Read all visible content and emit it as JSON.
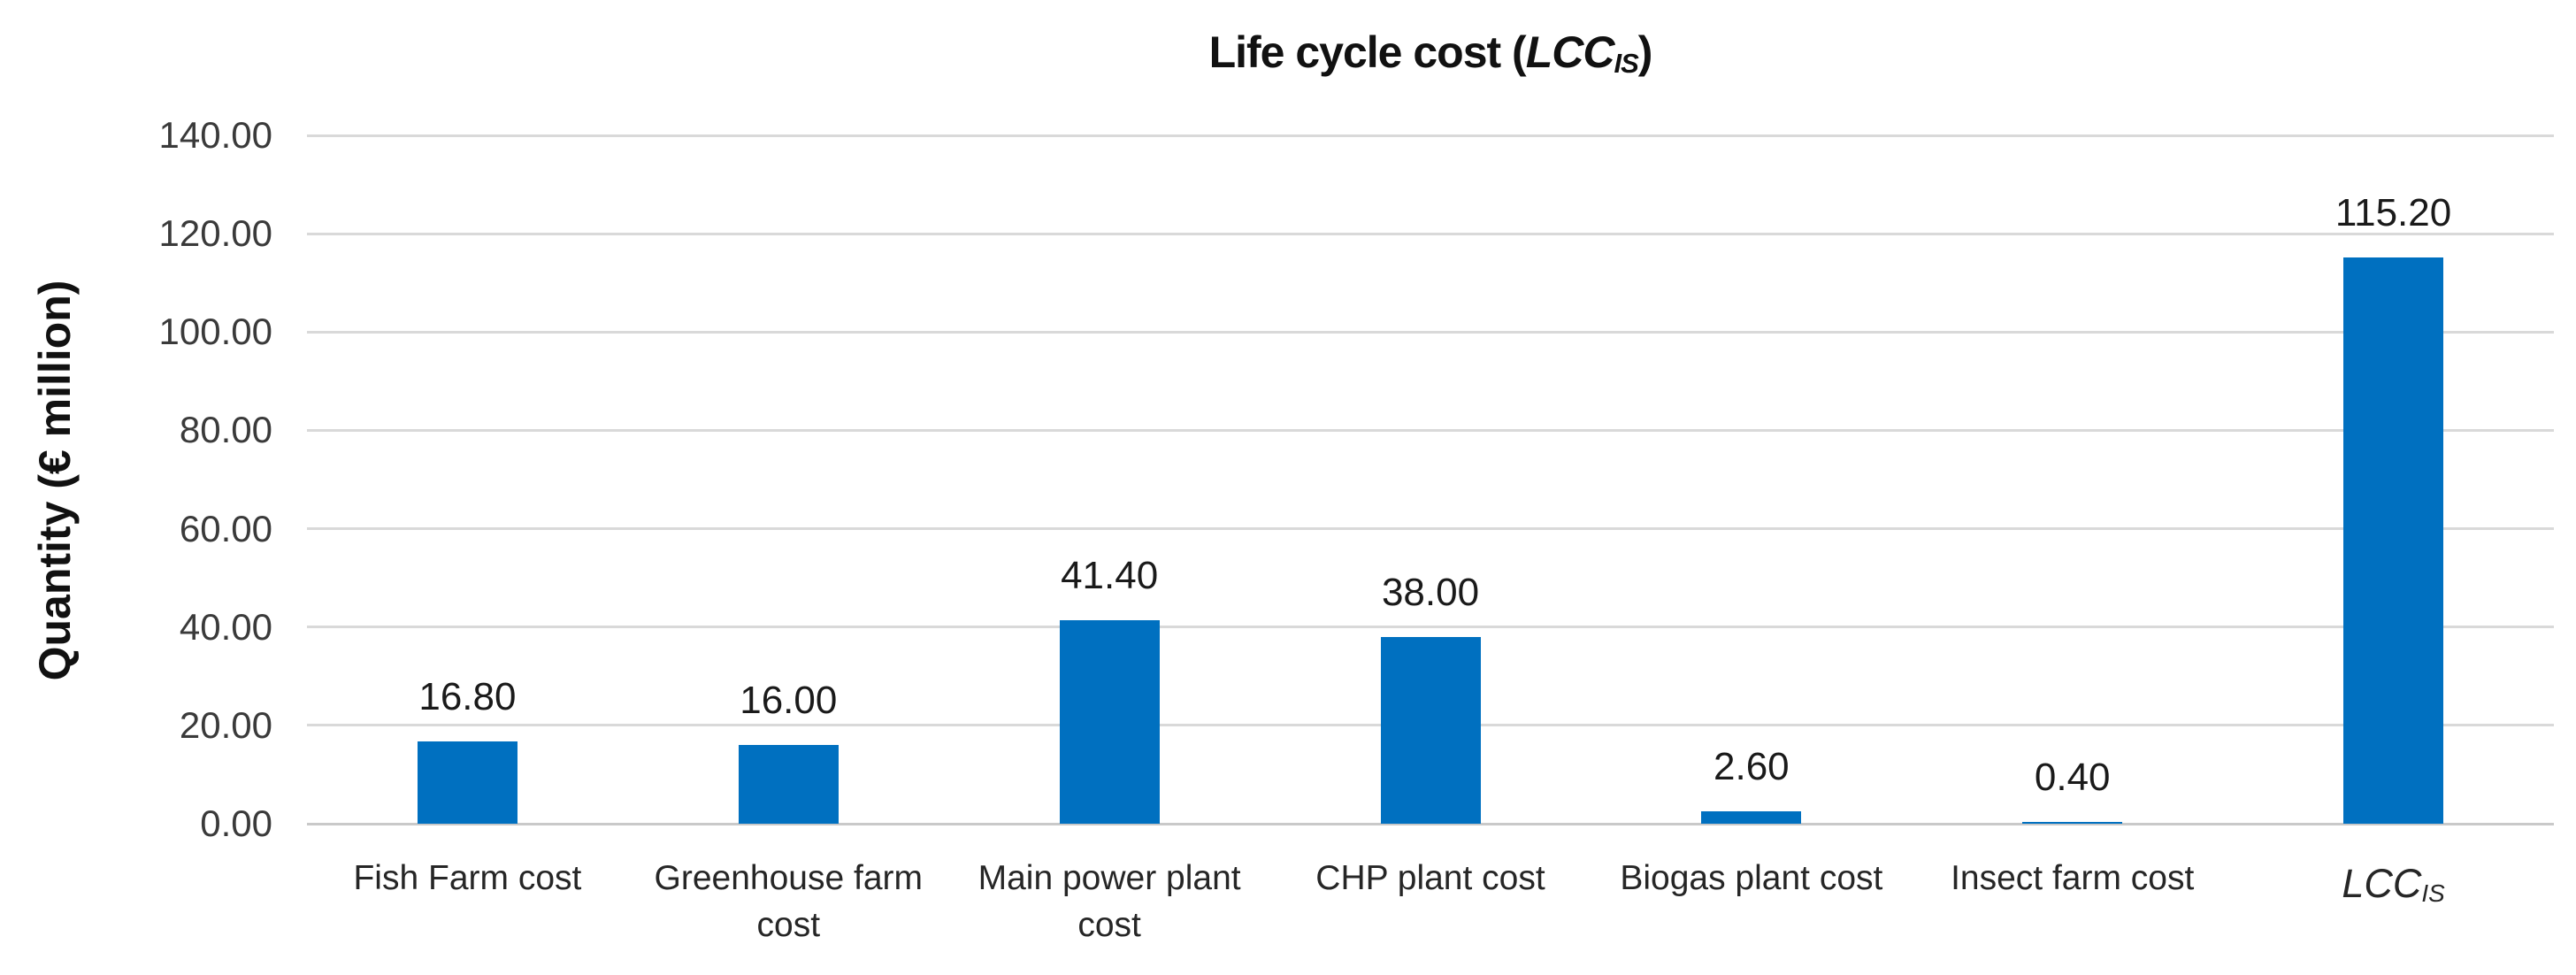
{
  "chart_data": {
    "type": "bar",
    "title": "Life cycle cost (LCC_IS)",
    "title_parts": {
      "prefix": "Life cycle cost (",
      "italic_base": "LCC",
      "subscript": "IS",
      "suffix": ")"
    },
    "ylabel": "Quantity (€ million)",
    "xlabel": "",
    "ylim": [
      0,
      140
    ],
    "ytick_step": 20,
    "grid": true,
    "legend": false,
    "categories": [
      {
        "label": "Fish Farm cost"
      },
      {
        "label": "Greenhouse farm\ncost"
      },
      {
        "label": "Main power plant\ncost"
      },
      {
        "label": "CHP plant cost"
      },
      {
        "label": "Biogas plant cost"
      },
      {
        "label": "Insect farm cost"
      },
      {
        "label": "LCC",
        "subscript": "IS",
        "italic": true
      }
    ],
    "values": [
      16.8,
      16.0,
      41.4,
      38.0,
      2.6,
      0.4,
      115.2
    ],
    "value_labels": [
      "16.80",
      "16.00",
      "41.40",
      "38.00",
      "2.60",
      "0.40",
      "115.20"
    ],
    "yticks": [
      {
        "value": 0,
        "label": "0.00"
      },
      {
        "value": 20,
        "label": "20.00"
      },
      {
        "value": 40,
        "label": "40.00"
      },
      {
        "value": 60,
        "label": "60.00"
      },
      {
        "value": 80,
        "label": "80.00"
      },
      {
        "value": 100,
        "label": "100.00"
      },
      {
        "value": 120,
        "label": "120.00"
      },
      {
        "value": 140,
        "label": "140.00"
      }
    ],
    "colors": {
      "bar": "#0070C0",
      "gridline": "#D9D9D9",
      "axis_line": "#C9C9C9",
      "tick_text": "#3A3A3A",
      "label_text": "#1A1A1A",
      "title_text": "#111111"
    }
  }
}
